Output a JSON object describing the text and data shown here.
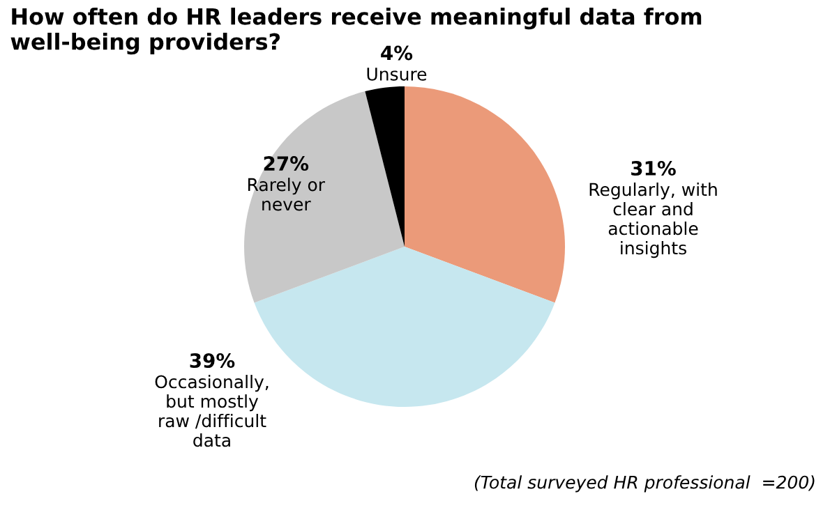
{
  "chart_data": {
    "type": "pie",
    "title": "How often do HR leaders receive meaningful data from well-being providers?",
    "categories": [
      "Regularly, with\nclear and\nactionable\ninsights",
      "Occasionally,\nbut mostly\nraw /difficult\ndata",
      "Rarely or\nnever",
      "Unsure"
    ],
    "values": [
      31,
      39,
      27,
      4
    ],
    "colors": [
      "#eb9a79",
      "#c6e7ef",
      "#c8c8c8",
      "#000000"
    ],
    "value_labels": [
      "31%",
      "39%",
      "27%",
      "4%"
    ],
    "annotations": [
      "(Total surveyed HR professional  =200)"
    ]
  }
}
